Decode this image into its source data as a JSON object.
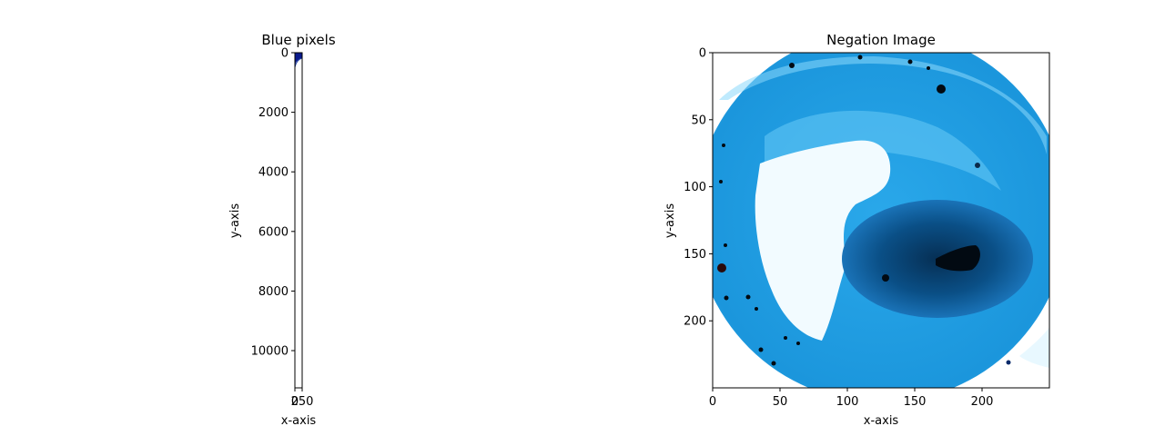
{
  "chart_data": [
    {
      "type": "image",
      "title": "Blue pixels",
      "xlabel": "x-axis",
      "ylabel": "y-axis",
      "xlim": [
        0,
        250
      ],
      "ylim": [
        11250,
        0
      ],
      "x_ticks": [
        0,
        250
      ],
      "x_tick_labels": [
        "0",
        "250"
      ],
      "y_ticks": [
        0,
        2000,
        4000,
        6000,
        8000,
        10000
      ],
      "y_tick_labels": [
        "0",
        "2000",
        "4000",
        "6000",
        "8000",
        "10000"
      ],
      "colors": {
        "blue_blob": "#0a1a8c",
        "edge": "#1e3fa0"
      }
    },
    {
      "type": "image",
      "title": "Negation Image",
      "xlabel": "x-axis",
      "ylabel": "y-axis",
      "xlim": [
        0,
        250
      ],
      "ylim": [
        250,
        0
      ],
      "x_ticks": [
        0,
        50,
        100,
        150,
        200
      ],
      "x_tick_labels": [
        "0",
        "50",
        "100",
        "150",
        "200"
      ],
      "y_ticks": [
        0,
        50,
        100,
        150,
        200
      ],
      "y_tick_labels": [
        "0",
        "50",
        "100",
        "150",
        "200"
      ],
      "colors": {
        "outer": "#1a9ee0",
        "light": "#5cc6f4",
        "pale": "#f2fbff",
        "dark": "#0a4f86",
        "darkest": "#062f54",
        "spot": "#020a12"
      }
    }
  ]
}
